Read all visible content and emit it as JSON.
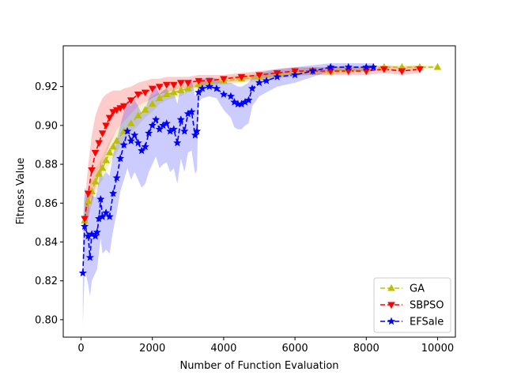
{
  "chart_data": {
    "type": "line",
    "title": "",
    "xlabel": "Number of Function Evaluation",
    "ylabel": "Fitness Value",
    "xlim": [
      -500,
      10500
    ],
    "ylim": [
      0.791,
      0.941
    ],
    "xticks": [
      0,
      2000,
      4000,
      6000,
      8000,
      10000
    ],
    "yticks": [
      0.8,
      0.82,
      0.84,
      0.86,
      0.88,
      0.9,
      0.92
    ],
    "xtick_labels": [
      "0",
      "2000",
      "4000",
      "6000",
      "8000",
      "10000"
    ],
    "ytick_labels": [
      "0.80",
      "0.82",
      "0.84",
      "0.86",
      "0.88",
      "0.90",
      "0.92"
    ],
    "grid": false,
    "legend_position": "lower-right",
    "series": [
      {
        "name": "GA",
        "color": "#bfbf00",
        "marker": "triangle-up",
        "x": [
          100,
          200,
          300,
          400,
          500,
          600,
          700,
          800,
          900,
          1000,
          1200,
          1400,
          1600,
          1800,
          2000,
          2200,
          2400,
          2600,
          2800,
          3000,
          3300,
          3600,
          4000,
          4500,
          5000,
          5500,
          6000,
          6500,
          7000,
          7500,
          8000,
          8500,
          9000,
          9500,
          10000
        ],
        "y": [
          0.851,
          0.861,
          0.866,
          0.871,
          0.875,
          0.878,
          0.882,
          0.886,
          0.889,
          0.892,
          0.897,
          0.901,
          0.905,
          0.908,
          0.911,
          0.914,
          0.916,
          0.917,
          0.918,
          0.919,
          0.921,
          0.922,
          0.923,
          0.924,
          0.925,
          0.926,
          0.927,
          0.928,
          0.928,
          0.929,
          0.929,
          0.93,
          0.93,
          0.93,
          0.93
        ],
        "band_low": [
          0.845,
          0.855,
          0.86,
          0.865,
          0.869,
          0.872,
          0.876,
          0.88,
          0.883,
          0.886,
          0.892,
          0.896,
          0.9,
          0.904,
          0.907,
          0.911,
          0.913,
          0.914,
          0.915,
          0.917,
          0.919,
          0.92,
          0.921,
          0.922,
          0.923,
          0.924,
          0.925,
          0.926,
          0.926,
          0.927,
          0.928,
          0.928,
          0.929,
          0.929,
          0.929
        ],
        "band_high": [
          0.857,
          0.867,
          0.872,
          0.877,
          0.881,
          0.884,
          0.888,
          0.892,
          0.895,
          0.898,
          0.902,
          0.906,
          0.91,
          0.912,
          0.915,
          0.917,
          0.919,
          0.92,
          0.921,
          0.921,
          0.923,
          0.924,
          0.925,
          0.926,
          0.927,
          0.928,
          0.929,
          0.93,
          0.93,
          0.931,
          0.93,
          0.931,
          0.931,
          0.931,
          0.931
        ]
      },
      {
        "name": "SBPSO",
        "color": "#ff0000",
        "marker": "triangle-down",
        "x": [
          100,
          200,
          300,
          400,
          500,
          600,
          700,
          800,
          900,
          1000,
          1100,
          1200,
          1400,
          1600,
          1800,
          2000,
          2200,
          2400,
          2600,
          2800,
          3000,
          3300,
          3600,
          4000,
          4500,
          5000,
          5500,
          6000,
          6500,
          7000,
          7500,
          8000,
          8500,
          9000,
          9500
        ],
        "y": [
          0.852,
          0.865,
          0.877,
          0.886,
          0.891,
          0.896,
          0.9,
          0.904,
          0.907,
          0.908,
          0.909,
          0.91,
          0.913,
          0.916,
          0.917,
          0.919,
          0.92,
          0.921,
          0.921,
          0.922,
          0.922,
          0.923,
          0.923,
          0.924,
          0.925,
          0.926,
          0.927,
          0.928,
          0.928,
          0.928,
          0.928,
          0.928,
          0.929,
          0.928,
          0.929
        ],
        "band_low": [
          0.845,
          0.852,
          0.86,
          0.868,
          0.874,
          0.88,
          0.885,
          0.89,
          0.894,
          0.898,
          0.9,
          0.902,
          0.906,
          0.91,
          0.912,
          0.914,
          0.916,
          0.917,
          0.918,
          0.919,
          0.919,
          0.92,
          0.921,
          0.922,
          0.923,
          0.924,
          0.925,
          0.926,
          0.926,
          0.926,
          0.926,
          0.926,
          0.927,
          0.926,
          0.927
        ],
        "band_high": [
          0.86,
          0.88,
          0.895,
          0.905,
          0.91,
          0.914,
          0.916,
          0.917,
          0.918,
          0.918,
          0.918,
          0.919,
          0.92,
          0.922,
          0.923,
          0.924,
          0.924,
          0.925,
          0.925,
          0.925,
          0.925,
          0.926,
          0.926,
          0.926,
          0.927,
          0.928,
          0.929,
          0.93,
          0.93,
          0.93,
          0.93,
          0.93,
          0.931,
          0.93,
          0.931
        ]
      },
      {
        "name": "EFSale",
        "color": "#0000ff",
        "marker": "star",
        "x": [
          50,
          100,
          200,
          250,
          300,
          400,
          450,
          500,
          550,
          600,
          700,
          800,
          900,
          1000,
          1100,
          1200,
          1300,
          1400,
          1500,
          1600,
          1700,
          1800,
          1900,
          2000,
          2100,
          2200,
          2300,
          2400,
          2500,
          2600,
          2700,
          2800,
          2900,
          3000,
          3100,
          3200,
          3250,
          3300,
          3400,
          3600,
          3800,
          4000,
          4200,
          4300,
          4400,
          4500,
          4600,
          4700,
          4800,
          5000,
          5200,
          5500,
          6000,
          6500,
          7000,
          7500,
          8000,
          8200
        ],
        "y": [
          0.824,
          0.848,
          0.843,
          0.832,
          0.844,
          0.843,
          0.845,
          0.852,
          0.862,
          0.853,
          0.855,
          0.853,
          0.865,
          0.873,
          0.883,
          0.89,
          0.897,
          0.892,
          0.895,
          0.891,
          0.887,
          0.889,
          0.896,
          0.9,
          0.903,
          0.898,
          0.9,
          0.901,
          0.897,
          0.898,
          0.891,
          0.903,
          0.897,
          0.906,
          0.907,
          0.895,
          0.897,
          0.917,
          0.919,
          0.92,
          0.919,
          0.916,
          0.915,
          0.912,
          0.911,
          0.911,
          0.912,
          0.913,
          0.919,
          0.922,
          0.923,
          0.925,
          0.926,
          0.928,
          0.93,
          0.93,
          0.93,
          0.93
        ],
        "band_low": [
          0.797,
          0.826,
          0.818,
          0.812,
          0.82,
          0.824,
          0.826,
          0.834,
          0.842,
          0.834,
          0.836,
          0.834,
          0.846,
          0.855,
          0.866,
          0.872,
          0.878,
          0.872,
          0.876,
          0.872,
          0.868,
          0.87,
          0.876,
          0.88,
          0.884,
          0.878,
          0.88,
          0.881,
          0.876,
          0.878,
          0.87,
          0.883,
          0.876,
          0.886,
          0.887,
          0.875,
          0.877,
          0.912,
          0.914,
          0.915,
          0.914,
          0.908,
          0.904,
          0.899,
          0.898,
          0.898,
          0.9,
          0.901,
          0.91,
          0.915,
          0.917,
          0.92,
          0.922,
          0.925,
          0.928,
          0.928,
          0.928,
          0.928
        ],
        "band_high": [
          0.85,
          0.868,
          0.864,
          0.856,
          0.864,
          0.863,
          0.866,
          0.872,
          0.882,
          0.873,
          0.876,
          0.874,
          0.885,
          0.892,
          0.9,
          0.907,
          0.913,
          0.91,
          0.913,
          0.91,
          0.906,
          0.908,
          0.914,
          0.918,
          0.92,
          0.916,
          0.918,
          0.919,
          0.916,
          0.917,
          0.911,
          0.921,
          0.916,
          0.923,
          0.924,
          0.915,
          0.917,
          0.922,
          0.924,
          0.925,
          0.924,
          0.922,
          0.922,
          0.921,
          0.92,
          0.92,
          0.921,
          0.922,
          0.925,
          0.927,
          0.928,
          0.929,
          0.93,
          0.931,
          0.932,
          0.932,
          0.932,
          0.932
        ]
      }
    ]
  }
}
